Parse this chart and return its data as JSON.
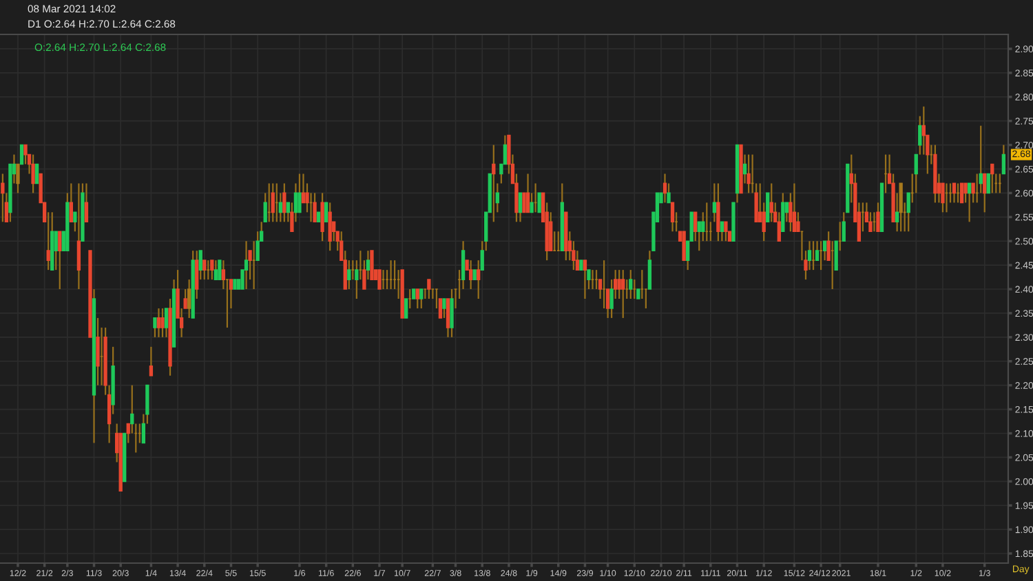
{
  "chart_data": {
    "type": "candlestick",
    "title": "08 Mar 2021 14:02",
    "subtitle": "D1 O:2.64 H:2.70 L:2.64 C:2.68",
    "xlabel": "Day",
    "categories": [
      null,
      null,
      null,
      null,
      "12/2",
      null,
      null,
      null,
      null,
      null,
      null,
      "21/2",
      null,
      null,
      null,
      null,
      null,
      "2/3",
      null,
      null,
      null,
      null,
      null,
      null,
      "11/3",
      null,
      null,
      null,
      null,
      null,
      null,
      "20/3",
      null,
      null,
      null,
      null,
      null,
      null,
      null,
      "1/4",
      null,
      null,
      null,
      null,
      null,
      null,
      "13/4",
      null,
      null,
      null,
      null,
      null,
      null,
      "22/4",
      null,
      null,
      null,
      null,
      null,
      null,
      "5/5",
      null,
      null,
      null,
      null,
      null,
      null,
      "15/5",
      null,
      null,
      null,
      null,
      null,
      null,
      null,
      null,
      null,
      null,
      "1/6",
      null,
      null,
      null,
      null,
      null,
      null,
      "11/6",
      null,
      null,
      null,
      null,
      null,
      null,
      "22/6",
      null,
      null,
      null,
      null,
      null,
      null,
      "1/7",
      null,
      null,
      null,
      null,
      null,
      "10/7",
      null,
      null,
      null,
      null,
      null,
      null,
      null,
      "22/7",
      null,
      null,
      null,
      null,
      null,
      "3/8",
      null,
      null,
      null,
      null,
      null,
      null,
      "13/8",
      null,
      null,
      null,
      null,
      null,
      null,
      "24/8",
      null,
      null,
      null,
      null,
      null,
      "1/9",
      null,
      null,
      null,
      null,
      null,
      null,
      "14/9",
      null,
      null,
      null,
      null,
      null,
      null,
      "23/9",
      null,
      null,
      null,
      null,
      null,
      "1/10",
      null,
      null,
      null,
      null,
      null,
      null,
      "12/10",
      null,
      null,
      null,
      null,
      null,
      null,
      "22/10",
      null,
      null,
      null,
      null,
      null,
      "2/11",
      null,
      null,
      null,
      null,
      null,
      null,
      "11/11",
      null,
      null,
      null,
      null,
      null,
      null,
      "20/11",
      null,
      null,
      null,
      null,
      null,
      null,
      "1/12",
      null,
      null,
      null,
      null,
      null,
      null,
      null,
      "15/12",
      null,
      null,
      null,
      null,
      null,
      null,
      "24/12",
      null,
      null,
      null,
      null,
      "2021",
      null,
      null,
      null,
      null,
      null,
      null,
      null,
      null,
      null,
      "18/1",
      null,
      null,
      null,
      null,
      null,
      null,
      null,
      null,
      null,
      "1/2",
      null,
      null,
      null,
      null,
      null,
      null,
      "10/2",
      null,
      null,
      null,
      null,
      null,
      null,
      null,
      null,
      null,
      null,
      "1/3",
      null,
      null,
      null,
      null,
      null
    ],
    "ohlc": [
      [
        2.62,
        2.64,
        2.54,
        2.6
      ],
      [
        2.58,
        2.6,
        2.54,
        2.54
      ],
      [
        2.56,
        2.66,
        2.54,
        2.66
      ],
      [
        2.64,
        2.68,
        2.62,
        2.66
      ],
      [
        2.66,
        2.66,
        2.6,
        2.62
      ],
      [
        2.66,
        2.7,
        2.66,
        2.7
      ],
      [
        2.7,
        2.7,
        2.66,
        2.68
      ],
      [
        2.68,
        2.68,
        2.64,
        2.66
      ],
      [
        2.66,
        2.68,
        2.6,
        2.62
      ],
      [
        2.62,
        2.66,
        2.62,
        2.66
      ],
      [
        2.64,
        2.64,
        2.58,
        2.58
      ],
      [
        2.58,
        2.58,
        2.54,
        2.54
      ],
      [
        2.48,
        2.56,
        2.44,
        2.46
      ],
      [
        2.44,
        2.56,
        2.44,
        2.52
      ],
      [
        2.48,
        2.52,
        2.44,
        2.52
      ],
      [
        2.52,
        2.52,
        2.4,
        2.48
      ],
      [
        2.48,
        2.52,
        2.48,
        2.52
      ],
      [
        2.48,
        2.6,
        2.48,
        2.58
      ],
      [
        2.58,
        2.62,
        2.54,
        2.54
      ],
      [
        2.54,
        2.56,
        2.52,
        2.56
      ],
      [
        2.5,
        2.62,
        2.4,
        2.44
      ],
      [
        2.5,
        2.62,
        2.5,
        2.6
      ],
      [
        2.58,
        2.62,
        2.54,
        2.54
      ],
      [
        2.48,
        2.48,
        2.3,
        2.3
      ],
      [
        2.18,
        2.4,
        2.08,
        2.38
      ],
      [
        2.3,
        2.34,
        2.2,
        2.24
      ],
      [
        2.26,
        2.32,
        2.2,
        2.26
      ],
      [
        2.3,
        2.32,
        2.18,
        2.2
      ],
      [
        2.18,
        2.2,
        2.08,
        2.12
      ],
      [
        2.16,
        2.28,
        2.14,
        2.24
      ],
      [
        2.1,
        2.12,
        2.04,
        2.06
      ],
      [
        2.1,
        2.1,
        1.98,
        1.98
      ],
      [
        2.0,
        2.1,
        2.0,
        2.1
      ],
      [
        2.12,
        2.12,
        2.08,
        2.1
      ],
      [
        2.12,
        2.2,
        2.1,
        2.14
      ],
      [
        2.1,
        2.12,
        2.06,
        2.1
      ],
      [
        2.1,
        2.12,
        2.08,
        2.1
      ],
      [
        2.08,
        2.14,
        2.08,
        2.12
      ],
      [
        2.14,
        2.2,
        2.12,
        2.2
      ],
      [
        2.24,
        2.28,
        2.22,
        2.22
      ],
      [
        2.32,
        2.34,
        2.3,
        2.34
      ],
      [
        2.34,
        2.36,
        2.3,
        2.32
      ],
      [
        2.34,
        2.36,
        2.3,
        2.32
      ],
      [
        2.32,
        2.36,
        2.3,
        2.36
      ],
      [
        2.36,
        2.38,
        2.22,
        2.24
      ],
      [
        2.28,
        2.42,
        2.28,
        2.4
      ],
      [
        2.4,
        2.44,
        2.34,
        2.34
      ],
      [
        2.34,
        2.36,
        2.3,
        2.32
      ],
      [
        2.38,
        2.4,
        2.36,
        2.36
      ],
      [
        2.36,
        2.42,
        2.34,
        2.4
      ],
      [
        2.34,
        2.48,
        2.34,
        2.46
      ],
      [
        2.46,
        2.48,
        2.38,
        2.4
      ],
      [
        2.44,
        2.48,
        2.42,
        2.48
      ],
      [
        2.46,
        2.46,
        2.42,
        2.44
      ],
      [
        2.44,
        2.46,
        2.42,
        2.44
      ],
      [
        2.46,
        2.46,
        2.42,
        2.44
      ],
      [
        2.42,
        2.46,
        2.42,
        2.44
      ],
      [
        2.42,
        2.46,
        2.42,
        2.46
      ],
      [
        2.44,
        2.46,
        2.4,
        2.42
      ],
      [
        2.42,
        2.42,
        2.32,
        2.42
      ],
      [
        2.42,
        2.42,
        2.36,
        2.4
      ],
      [
        2.4,
        2.42,
        2.4,
        2.42
      ],
      [
        2.4,
        2.42,
        2.4,
        2.42
      ],
      [
        2.4,
        2.44,
        2.4,
        2.44
      ],
      [
        2.44,
        2.5,
        2.4,
        2.46
      ],
      [
        2.48,
        2.48,
        2.42,
        2.46
      ],
      [
        2.46,
        2.5,
        2.4,
        2.46
      ],
      [
        2.46,
        2.52,
        2.46,
        2.5
      ],
      [
        2.5,
        2.54,
        2.5,
        2.52
      ],
      [
        2.54,
        2.6,
        2.54,
        2.58
      ],
      [
        2.56,
        2.62,
        2.54,
        2.56
      ],
      [
        2.6,
        2.62,
        2.54,
        2.56
      ],
      [
        2.58,
        2.62,
        2.54,
        2.58
      ],
      [
        2.56,
        2.6,
        2.54,
        2.58
      ],
      [
        2.6,
        2.62,
        2.54,
        2.56
      ],
      [
        2.56,
        2.58,
        2.54,
        2.58
      ],
      [
        2.56,
        2.58,
        2.52,
        2.52
      ],
      [
        2.56,
        2.62,
        2.54,
        2.6
      ],
      [
        2.56,
        2.64,
        2.56,
        2.6
      ],
      [
        2.6,
        2.64,
        2.58,
        2.58
      ],
      [
        2.6,
        2.62,
        2.56,
        2.58
      ],
      [
        2.58,
        2.6,
        2.54,
        2.58
      ],
      [
        2.58,
        2.6,
        2.54,
        2.54
      ],
      [
        2.54,
        2.56,
        2.54,
        2.56
      ],
      [
        2.58,
        2.6,
        2.5,
        2.52
      ],
      [
        2.54,
        2.58,
        2.54,
        2.58
      ],
      [
        2.56,
        2.58,
        2.48,
        2.5
      ],
      [
        2.54,
        2.54,
        2.5,
        2.52
      ],
      [
        2.52,
        2.52,
        2.48,
        2.5
      ],
      [
        2.5,
        2.52,
        2.46,
        2.46
      ],
      [
        2.46,
        2.48,
        2.4,
        2.4
      ],
      [
        2.42,
        2.46,
        2.4,
        2.44
      ],
      [
        2.44,
        2.46,
        2.42,
        2.44
      ],
      [
        2.42,
        2.46,
        2.38,
        2.44
      ],
      [
        2.44,
        2.48,
        2.42,
        2.44
      ],
      [
        2.44,
        2.46,
        2.4,
        2.4
      ],
      [
        2.44,
        2.48,
        2.42,
        2.46
      ],
      [
        2.48,
        2.48,
        2.42,
        2.42
      ],
      [
        2.44,
        2.44,
        2.42,
        2.42
      ],
      [
        2.44,
        2.44,
        2.4,
        2.4
      ],
      [
        2.42,
        2.44,
        2.4,
        2.42
      ],
      [
        2.42,
        2.44,
        2.4,
        2.42
      ],
      [
        2.42,
        2.46,
        2.4,
        2.42
      ],
      [
        2.42,
        2.46,
        2.4,
        2.42
      ],
      [
        2.42,
        2.44,
        2.38,
        2.42
      ],
      [
        2.44,
        2.44,
        2.34,
        2.34
      ],
      [
        2.34,
        2.38,
        2.34,
        2.38
      ],
      [
        2.38,
        2.4,
        2.36,
        2.38
      ],
      [
        2.38,
        2.4,
        2.38,
        2.4
      ],
      [
        2.4,
        2.4,
        2.36,
        2.38
      ],
      [
        2.38,
        2.4,
        2.36,
        2.4
      ],
      [
        2.4,
        2.4,
        2.38,
        2.4
      ],
      [
        2.42,
        2.42,
        2.38,
        2.4
      ],
      [
        2.4,
        2.4,
        2.38,
        2.4
      ],
      [
        2.4,
        2.4,
        2.36,
        2.4
      ],
      [
        2.38,
        2.38,
        2.34,
        2.34
      ],
      [
        2.36,
        2.38,
        2.34,
        2.38
      ],
      [
        2.38,
        2.38,
        2.3,
        2.32
      ],
      [
        2.32,
        2.4,
        2.3,
        2.38
      ],
      [
        2.4,
        2.4,
        2.36,
        2.4
      ],
      [
        2.42,
        2.44,
        2.38,
        2.42
      ],
      [
        2.42,
        2.5,
        2.4,
        2.48
      ],
      [
        2.46,
        2.46,
        2.44,
        2.44
      ],
      [
        2.44,
        2.46,
        2.4,
        2.42
      ],
      [
        2.42,
        2.44,
        2.42,
        2.44
      ],
      [
        2.44,
        2.46,
        2.38,
        2.42
      ],
      [
        2.44,
        2.5,
        2.44,
        2.48
      ],
      [
        2.5,
        2.56,
        2.48,
        2.56
      ],
      [
        2.56,
        2.64,
        2.56,
        2.64
      ],
      [
        2.66,
        2.7,
        2.54,
        2.64
      ],
      [
        2.58,
        2.62,
        2.56,
        2.6
      ],
      [
        2.64,
        2.66,
        2.62,
        2.66
      ],
      [
        2.66,
        2.72,
        2.66,
        2.7
      ],
      [
        2.72,
        2.72,
        2.64,
        2.66
      ],
      [
        2.66,
        2.68,
        2.62,
        2.62
      ],
      [
        2.62,
        2.64,
        2.54,
        2.56
      ],
      [
        2.56,
        2.6,
        2.54,
        2.6
      ],
      [
        2.6,
        2.6,
        2.56,
        2.56
      ],
      [
        2.6,
        2.64,
        2.56,
        2.56
      ],
      [
        2.56,
        2.6,
        2.56,
        2.58
      ],
      [
        2.58,
        2.62,
        2.56,
        2.58
      ],
      [
        2.56,
        2.6,
        2.56,
        2.6
      ],
      [
        2.6,
        2.6,
        2.54,
        2.54
      ],
      [
        2.56,
        2.58,
        2.46,
        2.48
      ],
      [
        2.54,
        2.56,
        2.48,
        2.48
      ],
      [
        2.48,
        2.52,
        2.48,
        2.48
      ],
      [
        2.48,
        2.52,
        2.48,
        2.48
      ],
      [
        2.48,
        2.62,
        2.48,
        2.58
      ],
      [
        2.56,
        2.56,
        2.46,
        2.48
      ],
      [
        2.5,
        2.52,
        2.46,
        2.48
      ],
      [
        2.48,
        2.5,
        2.44,
        2.46
      ],
      [
        2.46,
        2.48,
        2.44,
        2.44
      ],
      [
        2.44,
        2.46,
        2.44,
        2.46
      ],
      [
        2.46,
        2.46,
        2.38,
        2.44
      ],
      [
        2.42,
        2.44,
        2.4,
        2.44
      ],
      [
        2.42,
        2.44,
        2.4,
        2.42
      ],
      [
        2.42,
        2.44,
        2.4,
        2.42
      ],
      [
        2.42,
        2.42,
        2.38,
        2.4
      ],
      [
        2.4,
        2.46,
        2.36,
        2.4
      ],
      [
        2.4,
        2.4,
        2.34,
        2.36
      ],
      [
        2.36,
        2.42,
        2.34,
        2.4
      ],
      [
        2.42,
        2.44,
        2.38,
        2.4
      ],
      [
        2.42,
        2.44,
        2.38,
        2.4
      ],
      [
        2.42,
        2.44,
        2.34,
        2.4
      ],
      [
        2.4,
        2.42,
        2.38,
        2.4
      ],
      [
        2.4,
        2.44,
        2.38,
        2.42
      ],
      [
        2.4,
        2.42,
        2.38,
        2.4
      ],
      [
        2.38,
        2.4,
        2.38,
        2.4
      ],
      [
        2.4,
        2.44,
        2.38,
        2.4
      ],
      [
        2.4,
        2.4,
        2.36,
        2.4
      ],
      [
        2.4,
        2.48,
        2.4,
        2.46
      ],
      [
        2.48,
        2.56,
        2.48,
        2.56
      ],
      [
        2.54,
        2.6,
        2.54,
        2.6
      ],
      [
        2.58,
        2.6,
        2.58,
        2.6
      ],
      [
        2.62,
        2.64,
        2.58,
        2.6
      ],
      [
        2.58,
        2.62,
        2.58,
        2.6
      ],
      [
        2.58,
        2.58,
        2.52,
        2.54
      ],
      [
        2.54,
        2.56,
        2.52,
        2.54
      ],
      [
        2.52,
        2.52,
        2.5,
        2.5
      ],
      [
        2.52,
        2.52,
        2.46,
        2.46
      ],
      [
        2.46,
        2.5,
        2.44,
        2.5
      ],
      [
        2.5,
        2.56,
        2.5,
        2.56
      ],
      [
        2.56,
        2.56,
        2.5,
        2.52
      ],
      [
        2.52,
        2.54,
        2.48,
        2.54
      ],
      [
        2.52,
        2.56,
        2.5,
        2.54
      ],
      [
        2.52,
        2.58,
        2.5,
        2.52
      ],
      [
        2.52,
        2.54,
        2.5,
        2.52
      ],
      [
        2.56,
        2.62,
        2.54,
        2.58
      ],
      [
        2.58,
        2.62,
        2.5,
        2.52
      ],
      [
        2.52,
        2.54,
        2.5,
        2.54
      ],
      [
        2.54,
        2.54,
        2.5,
        2.52
      ],
      [
        2.52,
        2.52,
        2.5,
        2.5
      ],
      [
        2.5,
        2.58,
        2.5,
        2.58
      ],
      [
        2.6,
        2.7,
        2.58,
        2.7
      ],
      [
        2.7,
        2.7,
        2.6,
        2.6
      ],
      [
        2.64,
        2.68,
        2.62,
        2.66
      ],
      [
        2.64,
        2.68,
        2.6,
        2.62
      ],
      [
        2.62,
        2.68,
        2.6,
        2.62
      ],
      [
        2.6,
        2.62,
        2.54,
        2.54
      ],
      [
        2.56,
        2.62,
        2.54,
        2.54
      ],
      [
        2.56,
        2.58,
        2.5,
        2.52
      ],
      [
        2.54,
        2.6,
        2.54,
        2.6
      ],
      [
        2.58,
        2.62,
        2.54,
        2.56
      ],
      [
        2.56,
        2.58,
        2.54,
        2.54
      ],
      [
        2.54,
        2.56,
        2.5,
        2.5
      ],
      [
        2.52,
        2.6,
        2.52,
        2.58
      ],
      [
        2.56,
        2.58,
        2.54,
        2.58
      ],
      [
        2.58,
        2.6,
        2.52,
        2.54
      ],
      [
        2.56,
        2.62,
        2.52,
        2.52
      ],
      [
        2.54,
        2.56,
        2.52,
        2.52
      ],
      [
        2.52,
        2.52,
        2.46,
        2.52
      ],
      [
        2.46,
        2.48,
        2.42,
        2.44
      ],
      [
        2.46,
        2.5,
        2.44,
        2.48
      ],
      [
        2.46,
        2.5,
        2.44,
        2.46
      ],
      [
        2.46,
        2.5,
        2.46,
        2.48
      ],
      [
        2.48,
        2.5,
        2.44,
        2.48
      ],
      [
        2.48,
        2.5,
        2.46,
        2.5
      ],
      [
        2.5,
        2.52,
        2.46,
        2.46
      ],
      [
        2.48,
        2.5,
        2.4,
        2.48
      ],
      [
        2.44,
        2.5,
        2.44,
        2.5
      ],
      [
        2.5,
        2.54,
        2.48,
        2.5
      ],
      [
        2.5,
        2.56,
        2.5,
        2.54
      ],
      [
        2.56,
        2.66,
        2.56,
        2.66
      ],
      [
        2.64,
        2.68,
        2.58,
        2.62
      ],
      [
        2.62,
        2.64,
        2.54,
        2.54
      ],
      [
        2.56,
        2.58,
        2.5,
        2.5
      ],
      [
        2.56,
        2.58,
        2.52,
        2.56
      ],
      [
        2.56,
        2.58,
        2.54,
        2.54
      ],
      [
        2.54,
        2.56,
        2.52,
        2.52
      ],
      [
        2.54,
        2.56,
        2.52,
        2.54
      ],
      [
        2.56,
        2.58,
        2.52,
        2.52
      ],
      [
        2.52,
        2.62,
        2.52,
        2.62
      ],
      [
        2.64,
        2.68,
        2.6,
        2.64
      ],
      [
        2.64,
        2.68,
        2.62,
        2.62
      ],
      [
        2.62,
        2.64,
        2.54,
        2.54
      ],
      [
        2.54,
        2.6,
        2.52,
        2.56
      ],
      [
        2.62,
        2.62,
        2.52,
        2.56
      ],
      [
        2.56,
        2.58,
        2.52,
        2.56
      ],
      [
        2.56,
        2.6,
        2.52,
        2.6
      ],
      [
        2.6,
        2.64,
        2.58,
        2.6
      ],
      [
        2.64,
        2.68,
        2.6,
        2.68
      ],
      [
        2.7,
        2.76,
        2.68,
        2.74
      ],
      [
        2.74,
        2.78,
        2.68,
        2.72
      ],
      [
        2.72,
        2.72,
        2.64,
        2.68
      ],
      [
        2.68,
        2.7,
        2.66,
        2.68
      ],
      [
        2.68,
        2.7,
        2.58,
        2.6
      ],
      [
        2.62,
        2.64,
        2.58,
        2.6
      ],
      [
        2.62,
        2.62,
        2.56,
        2.58
      ],
      [
        2.6,
        2.62,
        2.56,
        2.6
      ],
      [
        2.6,
        2.62,
        2.58,
        2.6
      ],
      [
        2.62,
        2.62,
        2.58,
        2.6
      ],
      [
        2.6,
        2.62,
        2.58,
        2.6
      ],
      [
        2.62,
        2.62,
        2.58,
        2.58
      ],
      [
        2.62,
        2.62,
        2.58,
        2.6
      ],
      [
        2.6,
        2.62,
        2.54,
        2.62
      ],
      [
        2.62,
        2.62,
        2.58,
        2.6
      ],
      [
        2.6,
        2.64,
        2.58,
        2.6
      ],
      [
        2.62,
        2.74,
        2.6,
        2.64
      ],
      [
        2.64,
        2.64,
        2.56,
        2.6
      ],
      [
        2.6,
        2.64,
        2.6,
        2.64
      ],
      [
        2.66,
        2.66,
        2.6,
        2.64
      ],
      [
        2.62,
        2.64,
        2.6,
        2.62
      ],
      [
        2.62,
        2.64,
        2.6,
        2.62
      ],
      [
        2.64,
        2.7,
        2.64,
        2.68
      ]
    ],
    "colors": [
      "#e8472f",
      "#e8472f",
      "#1fc95a",
      "#1fc95a",
      "#a87a1e",
      "#1fc95a",
      "#e8472f",
      "#e8472f",
      "#e8472f",
      "#1fc95a",
      "#e8472f",
      "#e8472f",
      "#e8472f",
      "#1fc95a",
      "#1fc95a",
      "#e8472f",
      "#1fc95a",
      "#1fc95a",
      "#e8472f",
      "#1fc95a",
      "#e8472f",
      "#1fc95a",
      "#e8472f",
      "#e8472f",
      "#1fc95a",
      "#e8472f",
      "#a87a1e",
      "#e8472f",
      "#e8472f",
      "#1fc95a",
      "#e8472f",
      "#e8472f",
      "#1fc95a",
      "#e8472f",
      "#1fc95a",
      "#a87a1e",
      "#a87a1e",
      "#1fc95a",
      "#1fc95a",
      "#e8472f",
      "#1fc95a",
      "#e8472f",
      "#e8472f",
      "#1fc95a",
      "#e8472f",
      "#1fc95a",
      "#e8472f",
      "#e8472f",
      "#e8472f",
      "#a87a1e",
      "#1fc95a",
      "#e8472f",
      "#1fc95a",
      "#e8472f",
      "#a87a1e",
      "#e8472f",
      "#1fc95a",
      "#1fc95a",
      "#e8472f",
      "#a87a1e",
      "#e8472f",
      "#1fc95a",
      "#1fc95a",
      "#1fc95a",
      "#1fc95a",
      "#e8472f",
      "#a87a1e",
      "#1fc95a",
      "#1fc95a",
      "#1fc95a",
      "#a87a1e",
      "#e8472f",
      "#a87a1e",
      "#1fc95a",
      "#e8472f",
      "#1fc95a",
      "#e8472f",
      "#1fc95a",
      "#1fc95a",
      "#e8472f",
      "#e8472f",
      "#a87a1e",
      "#e8472f",
      "#1fc95a",
      "#e8472f",
      "#1fc95a",
      "#e8472f",
      "#e8472f",
      "#e8472f",
      "#e8472f",
      "#e8472f",
      "#1fc95a",
      "#a87a1e",
      "#1fc95a",
      "#a87a1e",
      "#e8472f",
      "#1fc95a",
      "#e8472f",
      "#e8472f",
      "#e8472f",
      "#a87a1e",
      "#a87a1e",
      "#a87a1e",
      "#a87a1e",
      "#a87a1e",
      "#e8472f",
      "#1fc95a",
      "#a87a1e",
      "#1fc95a",
      "#e8472f",
      "#1fc95a",
      "#a87a1e",
      "#e8472f",
      "#a87a1e",
      "#a87a1e",
      "#e8472f",
      "#1fc95a",
      "#e8472f",
      "#1fc95a",
      "#a87a1e",
      "#a87a1e",
      "#1fc95a",
      "#e8472f",
      "#e8472f",
      "#1fc95a",
      "#e8472f",
      "#1fc95a",
      "#1fc95a",
      "#1fc95a",
      "#e8472f",
      "#1fc95a",
      "#1fc95a",
      "#1fc95a",
      "#e8472f",
      "#e8472f",
      "#e8472f",
      "#1fc95a",
      "#e8472f",
      "#e8472f",
      "#1fc95a",
      "#a87a1e",
      "#1fc95a",
      "#e8472f",
      "#e8472f",
      "#e8472f",
      "#a87a1e",
      "#a87a1e",
      "#1fc95a",
      "#e8472f",
      "#e8472f",
      "#e8472f",
      "#e8472f",
      "#1fc95a",
      "#e8472f",
      "#1fc95a",
      "#a87a1e",
      "#a87a1e",
      "#e8472f",
      "#a87a1e",
      "#e8472f",
      "#1fc95a",
      "#e8472f",
      "#e8472f",
      "#e8472f",
      "#a87a1e",
      "#1fc95a",
      "#a87a1e",
      "#1fc95a",
      "#a87a1e",
      "#a87a1e",
      "#1fc95a",
      "#1fc95a",
      "#1fc95a",
      "#1fc95a",
      "#e8472f",
      "#1fc95a",
      "#e8472f",
      "#a87a1e",
      "#e8472f",
      "#e8472f",
      "#1fc95a",
      "#1fc95a",
      "#e8472f",
      "#1fc95a",
      "#1fc95a",
      "#a87a1e",
      "#a87a1e",
      "#1fc95a",
      "#e8472f",
      "#1fc95a",
      "#e8472f",
      "#e8472f",
      "#1fc95a",
      "#1fc95a",
      "#e8472f",
      "#1fc95a",
      "#e8472f",
      "#a87a1e",
      "#e8472f",
      "#e8472f",
      "#e8472f",
      "#1fc95a",
      "#e8472f",
      "#e8472f",
      "#e8472f",
      "#1fc95a",
      "#1fc95a",
      "#e8472f",
      "#e8472f",
      "#e8472f",
      "#a87a1e",
      "#e8472f",
      "#1fc95a",
      "#a87a1e",
      "#1fc95a",
      "#a87a1e",
      "#1fc95a",
      "#e8472f",
      "#a87a1e",
      "#1fc95a",
      "#a87a1e",
      "#1fc95a",
      "#1fc95a",
      "#e8472f",
      "#e8472f",
      "#e8472f",
      "#a87a1e",
      "#e8472f",
      "#e8472f",
      "#a87a1e",
      "#e8472f",
      "#1fc95a",
      "#a87a1e",
      "#e8472f",
      "#e8472f",
      "#1fc95a",
      "#a87a1e",
      "#a87a1e",
      "#1fc95a",
      "#a87a1e",
      "#1fc95a",
      "#1fc95a",
      "#e8472f",
      "#e8472f",
      "#a87a1e",
      "#e8472f",
      "#e8472f",
      "#e8472f",
      "#a87a1e",
      "#a87a1e",
      "#e8472f",
      "#a87a1e",
      "#e8472f",
      "#e8472f",
      "#1fc95a",
      "#e8472f",
      "#a87a1e",
      "#1fc95a",
      "#e8472f",
      "#1fc95a",
      "#e8472f",
      "#a87a1e",
      "#a87a1e",
      "#1fc95a"
    ],
    "color": "#97701c",
    "ylim": [
      1.83,
      2.93
    ],
    "yticks": [
      1.85,
      {
        "value": 1.9,
        "label": "1.90"
      },
      1.95,
      {
        "value": 2.0,
        "label": "2.00"
      },
      2.05,
      {
        "value": 2.1,
        "label": "2.10"
      },
      2.15,
      {
        "value": 2.2,
        "label": "2.20"
      },
      2.25,
      {
        "value": 2.3,
        "label": "2.30"
      },
      2.35,
      {
        "value": 2.4,
        "label": "2.40"
      },
      2.45,
      {
        "value": 2.5,
        "label": "2.50"
      },
      2.55,
      {
        "value": 2.6,
        "label": "2.60"
      },
      2.65,
      {
        "value": 2.7,
        "label": "2.70"
      },
      2.75,
      {
        "value": 2.8,
        "label": "2.80"
      },
      2.85,
      {
        "value": 2.9,
        "label": "2.90"
      }
    ],
    "grid": true,
    "annotations": [
      "O:2.64 H:2.70 L:2.64 C:2.68",
      {
        "text": "2.68",
        "y": 2.68
      }
    ]
  }
}
